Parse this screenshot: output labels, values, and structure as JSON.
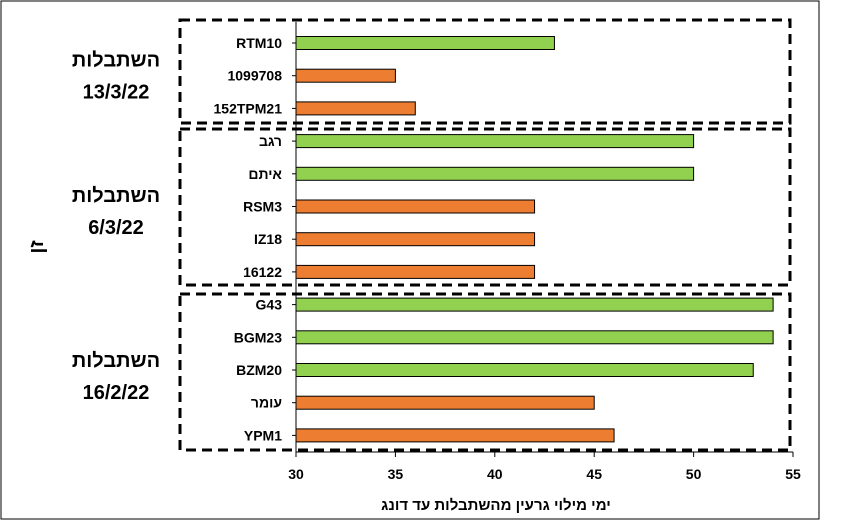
{
  "chart_data": {
    "type": "bar",
    "orientation": "horizontal",
    "xlabel": "ימי מילוי גרעין מהשתבלות עד דונג",
    "ylabel": "זן",
    "xlim": [
      30,
      55
    ],
    "xticks": [
      "30",
      "35",
      "40",
      "45",
      "50",
      "55"
    ],
    "grid": false,
    "colors": {
      "green": "#92d050",
      "orange": "#ed7d31"
    },
    "groups": [
      {
        "label_lines": [
          "השתבלות",
          "13/3/22"
        ],
        "bars": [
          {
            "category": "RTM10",
            "value": 43,
            "color": "green"
          },
          {
            "category": "1099708",
            "value": 35,
            "color": "orange"
          },
          {
            "category": "152TPM21",
            "value": 36,
            "color": "orange"
          }
        ]
      },
      {
        "label_lines": [
          "השתבלות",
          "6/3/22"
        ],
        "bars": [
          {
            "category": "רגב",
            "value": 50,
            "color": "green"
          },
          {
            "category": "איתם",
            "value": 50,
            "color": "green"
          },
          {
            "category": "RSM3",
            "value": 42,
            "color": "orange"
          },
          {
            "category": "IZ18",
            "value": 42,
            "color": "orange"
          },
          {
            "category": "16122",
            "value": 42,
            "color": "orange"
          }
        ]
      },
      {
        "label_lines": [
          "השתבלות",
          "16/2/22"
        ],
        "bars": [
          {
            "category": "G43",
            "value": 54,
            "color": "green"
          },
          {
            "category": "BGM23",
            "value": 54,
            "color": "green"
          },
          {
            "category": "BZM20",
            "value": 53,
            "color": "green"
          },
          {
            "category": "עומר",
            "value": 45,
            "color": "orange"
          },
          {
            "category": "YPM1",
            "value": 46,
            "color": "orange"
          }
        ]
      }
    ]
  }
}
